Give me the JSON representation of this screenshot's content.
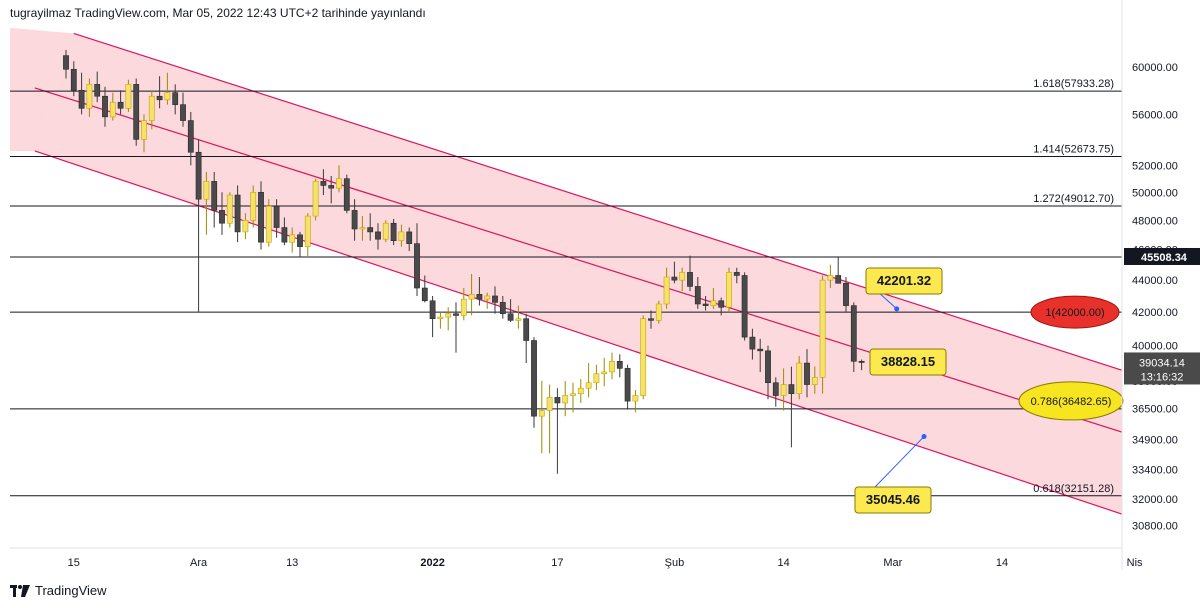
{
  "header": {
    "text": "tugrayilmaz TradingView.com, Mar 05, 2022 12:43 UTC+2 tarihinde yayınlandı"
  },
  "footer": {
    "brand": "TradingView"
  },
  "colors": {
    "channel_fill": "#fcd2d6",
    "channel_line": "#e0115f",
    "bull": "#f5e26a",
    "bull_border": "#c9a400",
    "bear": "#4a4a4a",
    "red_ellipse": "#e8312b",
    "yellow_ellipse": "#f7e51f",
    "callout_fill": "#fce94f",
    "marker_blue": "#2962ff",
    "tag_bg": "#131722"
  },
  "chart_data": {
    "type": "candlestick",
    "y_axis": {
      "scale": "log",
      "ylim": [
        29800,
        63500
      ],
      "ticks": [
        "60000.00",
        "56000.00",
        "52000.00",
        "50000.00",
        "48000.00",
        "46000.00",
        "44000.00",
        "42000.00",
        "40000.00",
        "38000.00",
        "36500.00",
        "34900.00",
        "33400.00",
        "32000.00",
        "30800.00"
      ]
    },
    "x_axis": {
      "ticks": [
        {
          "label": "15",
          "bar": 1
        },
        {
          "label": "Ara",
          "bar": 17
        },
        {
          "label": "13",
          "bar": 29
        },
        {
          "label": "2022",
          "bar": 47,
          "bold": true
        },
        {
          "label": "17",
          "bar": 63
        },
        {
          "label": "Şub",
          "bar": 78
        },
        {
          "label": "14",
          "bar": 92
        },
        {
          "label": "Mar",
          "bar": 106
        },
        {
          "label": "14",
          "bar": 120
        },
        {
          "label": "Nis",
          "bar": 137
        }
      ]
    },
    "candles": [
      [
        61000,
        61500,
        59000,
        59800
      ],
      [
        59800,
        60500,
        57500,
        58000
      ],
      [
        58000,
        59500,
        56000,
        56500
      ],
      [
        56500,
        59000,
        55800,
        58500
      ],
      [
        58500,
        59600,
        57000,
        57500
      ],
      [
        57500,
        58300,
        55000,
        55800
      ],
      [
        55800,
        57800,
        55500,
        57000
      ],
      [
        57000,
        58000,
        56000,
        56500
      ],
      [
        56500,
        58900,
        56200,
        58500
      ],
      [
        58500,
        59000,
        53500,
        54000
      ],
      [
        54000,
        56000,
        53000,
        55500
      ],
      [
        55500,
        58000,
        54800,
        57500
      ],
      [
        57500,
        59200,
        56500,
        57200
      ],
      [
        57200,
        59500,
        56800,
        57800
      ],
      [
        57800,
        58500,
        56000,
        56800
      ],
      [
        56800,
        57800,
        55000,
        55500
      ],
      [
        55500,
        56200,
        52000,
        53000
      ],
      [
        53000,
        54000,
        42000,
        49500
      ],
      [
        49500,
        51500,
        47000,
        50800
      ],
      [
        50800,
        51500,
        47500,
        48700
      ],
      [
        48700,
        50000,
        47000,
        47800
      ],
      [
        47800,
        50000,
        47500,
        49800
      ],
      [
        49800,
        50500,
        46500,
        47200
      ],
      [
        47200,
        48500,
        46700,
        48000
      ],
      [
        48000,
        50500,
        47500,
        50000
      ],
      [
        50000,
        50800,
        46000,
        46500
      ],
      [
        46500,
        49500,
        46200,
        49000
      ],
      [
        49000,
        49500,
        46800,
        47500
      ],
      [
        47500,
        48200,
        46300,
        46500
      ],
      [
        46500,
        47500,
        45800,
        47000
      ],
      [
        47000,
        47200,
        45500,
        46200
      ],
      [
        46200,
        48500,
        45500,
        48300
      ],
      [
        48300,
        51000,
        48000,
        50800
      ],
      [
        50800,
        51700,
        49800,
        50500
      ],
      [
        50500,
        51200,
        49200,
        50300
      ],
      [
        50300,
        52000,
        50000,
        51000
      ],
      [
        51000,
        51300,
        48500,
        48700
      ],
      [
        48700,
        49500,
        46600,
        47400
      ],
      [
        47400,
        48300,
        46600,
        47500
      ],
      [
        47500,
        48500,
        46600,
        47200
      ],
      [
        47200,
        47800,
        46000,
        46700
      ],
      [
        46700,
        48000,
        46500,
        47800
      ],
      [
        47800,
        48100,
        46300,
        46600
      ],
      [
        46600,
        47700,
        46200,
        47200
      ],
      [
        47200,
        47500,
        45900,
        46400
      ],
      [
        46400,
        47800,
        43000,
        43500
      ],
      [
        43500,
        44300,
        42600,
        42700
      ],
      [
        42700,
        43000,
        40500,
        41600
      ],
      [
        41600,
        42000,
        41000,
        41700
      ],
      [
        41700,
        42300,
        40900,
        41900
      ],
      [
        41900,
        42600,
        39600,
        41800
      ],
      [
        41800,
        43500,
        41500,
        42800
      ],
      [
        42800,
        44400,
        41800,
        43100
      ],
      [
        43100,
        44200,
        42400,
        42800
      ],
      [
        42800,
        43200,
        42200,
        43000
      ],
      [
        43000,
        43600,
        41900,
        42600
      ],
      [
        42600,
        43000,
        41600,
        41900
      ],
      [
        41900,
        42800,
        41400,
        41500
      ],
      [
        41500,
        42400,
        41000,
        41600
      ],
      [
        41600,
        41900,
        39000,
        40300
      ],
      [
        40300,
        40500,
        35500,
        36100
      ],
      [
        36100,
        38000,
        34200,
        36400
      ],
      [
        36400,
        37800,
        34200,
        37100
      ],
      [
        37100,
        37600,
        33200,
        36800
      ],
      [
        36800,
        38000,
        36100,
        37200
      ],
      [
        37200,
        37900,
        36300,
        37300
      ],
      [
        37300,
        38100,
        36800,
        37600
      ],
      [
        37600,
        39000,
        37100,
        37900
      ],
      [
        37900,
        38900,
        37500,
        38400
      ],
      [
        38400,
        39300,
        37700,
        38500
      ],
      [
        38500,
        39600,
        38100,
        39100
      ],
      [
        39100,
        39500,
        38200,
        38700
      ],
      [
        38700,
        38900,
        36500,
        36900
      ],
      [
        36900,
        37500,
        36300,
        37200
      ],
      [
        37200,
        41800,
        37000,
        41600
      ],
      [
        41600,
        42100,
        41000,
        41500
      ],
      [
        41500,
        42700,
        41300,
        42500
      ],
      [
        42500,
        44800,
        42200,
        44200
      ],
      [
        44200,
        45200,
        43800,
        44000
      ],
      [
        44000,
        44800,
        43300,
        44500
      ],
      [
        44500,
        45600,
        43300,
        43600
      ],
      [
        43600,
        44200,
        42200,
        42500
      ],
      [
        42500,
        43000,
        42100,
        42400
      ],
      [
        42400,
        43500,
        42200,
        42700
      ],
      [
        42700,
        42900,
        41800,
        42300
      ],
      [
        42300,
        44800,
        42000,
        44500
      ],
      [
        44500,
        44800,
        43800,
        44300
      ],
      [
        44300,
        44500,
        40300,
        40500
      ],
      [
        40500,
        41000,
        39200,
        39800
      ],
      [
        39800,
        40400,
        38500,
        39700
      ],
      [
        39700,
        40000,
        37000,
        37900
      ],
      [
        37900,
        38200,
        36600,
        37200
      ],
      [
        37200,
        38700,
        36400,
        37800
      ],
      [
        37800,
        38800,
        34500,
        37300
      ],
      [
        37300,
        39400,
        37000,
        39000
      ],
      [
        39000,
        39800,
        37100,
        37800
      ],
      [
        37800,
        38800,
        37300,
        38200
      ],
      [
        38200,
        44300,
        37300,
        44000
      ],
      [
        44000,
        45000,
        43500,
        44300
      ],
      [
        44300,
        45500,
        43900,
        43800
      ],
      [
        43800,
        44200,
        42000,
        42400
      ],
      [
        42400,
        42600,
        38500,
        39100
      ],
      [
        39100,
        39200,
        38600,
        39034
      ]
    ],
    "horizontal_levels": [
      {
        "value": 57933.28,
        "label": "1.618(57933.28)"
      },
      {
        "value": 52673.75,
        "label": "1.414(52673.75)"
      },
      {
        "value": 49012.7,
        "label": "1.272(49012.70)"
      },
      {
        "value": 45508.34,
        "label": ""
      },
      {
        "value": 42000.0,
        "label": "1(42000.00)"
      },
      {
        "value": 36482.65,
        "label": "0.786(36482.65)"
      },
      {
        "value": 32151.28,
        "label": "0.618(32151.28)"
      }
    ],
    "channel": {
      "upper": [
        [
          1,
          63000
        ],
        [
          144,
          37400
        ]
      ],
      "middle": [
        [
          -4,
          58200
        ],
        [
          144,
          34200
        ]
      ],
      "lower": [
        [
          -4,
          53100
        ],
        [
          144,
          30300
        ]
      ]
    },
    "callouts": [
      {
        "text": "42201.32",
        "value": 42201.32,
        "bar": 106.5
      },
      {
        "text": "38828.15",
        "value": 38828.15,
        "bar": 107.5
      },
      {
        "text": "35045.46",
        "value": 35045.46,
        "bar": 110
      }
    ],
    "price_tags": {
      "level": "45508.34",
      "current": "39034.14",
      "countdown": "13:16:32"
    }
  }
}
